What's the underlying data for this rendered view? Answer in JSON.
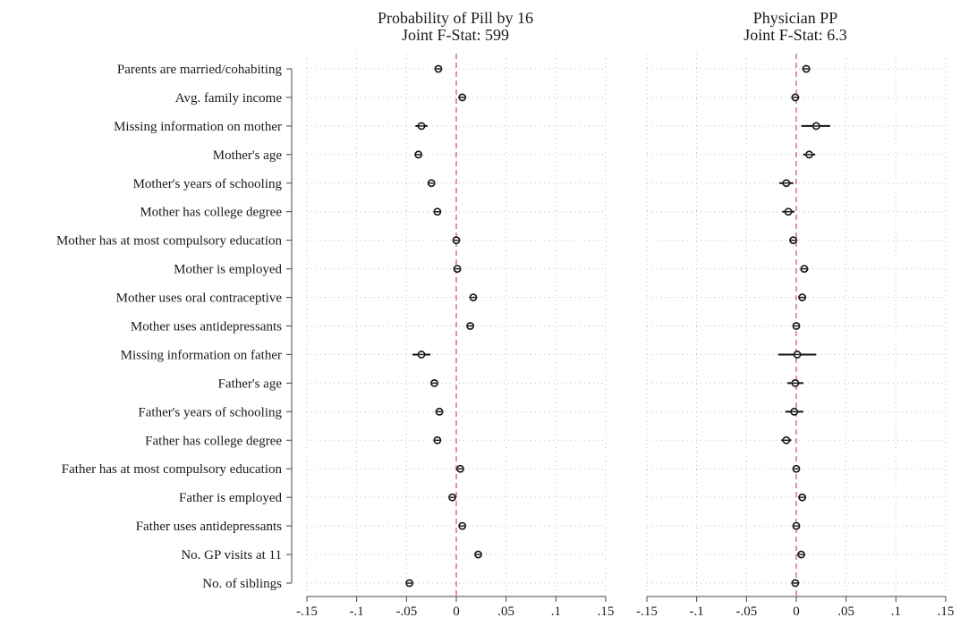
{
  "chart_data": {
    "type": "scatter",
    "description_style": "coefficient plot with confidence intervals",
    "categories": [
      "Parents are married/cohabiting",
      "Avg. family income",
      "Missing information on mother",
      "Mother's age",
      "Mother's years of schooling",
      "Mother has college degree",
      "Mother has at most compulsory education",
      "Mother is employed",
      "Mother uses oral contraceptive",
      "Mother uses antidepressants",
      "Missing information on father",
      "Father's age",
      "Father's years of schooling",
      "Father has college degree",
      "Father has at most compulsory education",
      "Father is employed",
      "Father uses antidepressants",
      "No. GP visits at 11",
      "No. of siblings"
    ],
    "xlim": [
      -0.15,
      0.15
    ],
    "xticks": [
      -0.15,
      -0.1,
      -0.05,
      0,
      0.05,
      0.1,
      0.15
    ],
    "xtick_labels": [
      "-.15",
      "-.1",
      "-.05",
      "0",
      ".05",
      ".1",
      ".15"
    ],
    "reference_line": 0,
    "reference_line_color": "#c06080",
    "grid": true,
    "panels": [
      {
        "title": "Probability of Pill by 16",
        "subtitle": "Joint F-Stat: 599",
        "values": [
          -0.018,
          0.006,
          -0.035,
          -0.038,
          -0.025,
          -0.019,
          0.0,
          0.001,
          0.017,
          0.014,
          -0.035,
          -0.022,
          -0.017,
          -0.019,
          0.004,
          -0.004,
          0.006,
          0.022,
          -0.047
        ],
        "ci_low": [
          -0.021,
          0.004,
          -0.041,
          -0.041,
          -0.028,
          -0.022,
          -0.002,
          -0.001,
          0.015,
          0.012,
          -0.044,
          -0.025,
          -0.021,
          -0.022,
          0.002,
          -0.006,
          0.004,
          0.02,
          -0.049
        ],
        "ci_high": [
          -0.015,
          0.008,
          -0.029,
          -0.035,
          -0.022,
          -0.016,
          0.002,
          0.003,
          0.019,
          0.016,
          -0.026,
          -0.019,
          -0.013,
          -0.016,
          0.006,
          -0.002,
          0.008,
          0.024,
          -0.045
        ]
      },
      {
        "title": "Physician PP",
        "subtitle": "Joint F-Stat: 6.3",
        "values": [
          0.01,
          -0.001,
          0.02,
          0.013,
          -0.01,
          -0.008,
          -0.003,
          0.008,
          0.006,
          0.0,
          0.001,
          -0.001,
          -0.002,
          -0.01,
          0.0,
          0.006,
          0.0,
          0.005,
          -0.001
        ],
        "ci_low": [
          0.006,
          -0.003,
          0.005,
          0.007,
          -0.017,
          -0.014,
          -0.007,
          0.004,
          0.002,
          -0.003,
          -0.018,
          -0.009,
          -0.011,
          -0.015,
          -0.003,
          0.002,
          -0.003,
          0.001,
          -0.004
        ],
        "ci_high": [
          0.014,
          0.001,
          0.034,
          0.019,
          -0.003,
          -0.002,
          0.001,
          0.012,
          0.01,
          0.003,
          0.02,
          0.007,
          0.007,
          -0.005,
          0.003,
          0.01,
          0.003,
          0.009,
          0.002
        ]
      }
    ]
  }
}
